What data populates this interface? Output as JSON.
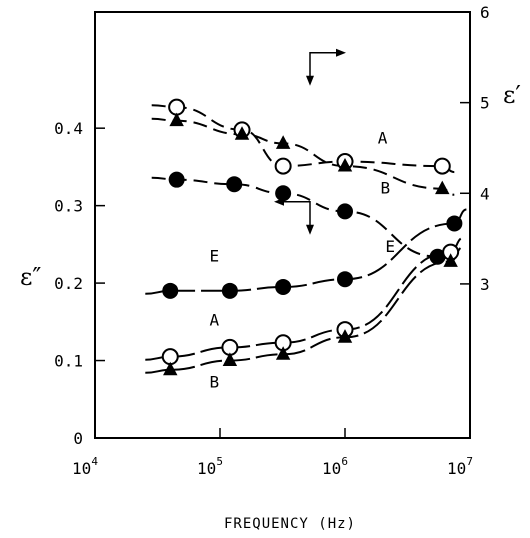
{
  "chart_data": {
    "type": "line",
    "xlabel": "FREQUENCY (Hz)",
    "xscale": "log",
    "xlim": [
      10000,
      10000000
    ],
    "x_ticks": [
      {
        "base": "10",
        "exp": "4"
      },
      {
        "base": "10",
        "exp": "5"
      },
      {
        "base": "10",
        "exp": "6"
      },
      {
        "base": "10",
        "exp": "7"
      }
    ],
    "y_left": {
      "label": "ε″",
      "ylim": [
        0,
        0.55
      ],
      "ticks": [
        "0",
        "0.1",
        "0.2",
        "0.3",
        "0.4"
      ]
    },
    "y_right": {
      "label": "ε′",
      "ylim": [
        1.3,
        6
      ],
      "ticks": [
        "3",
        "4",
        "5",
        "6"
      ]
    },
    "series": [
      {
        "name": "A",
        "quantity": "ε′",
        "axis": "right",
        "marker": "open-circle",
        "x": [
          45000,
          150000,
          320000,
          1000000,
          6000000
        ],
        "values": [
          4.95,
          4.7,
          4.3,
          4.35,
          4.3
        ]
      },
      {
        "name": "B",
        "quantity": "ε′",
        "axis": "right",
        "marker": "filled-triangle",
        "x": [
          45000,
          150000,
          320000,
          1000000,
          6000000
        ],
        "values": [
          4.8,
          4.65,
          4.55,
          4.3,
          4.05
        ]
      },
      {
        "name": "E",
        "quantity": "ε′",
        "axis": "right",
        "marker": "filled-circle",
        "x": [
          45000,
          130000,
          320000,
          1000000,
          5500000
        ],
        "values": [
          4.15,
          4.1,
          4.0,
          3.8,
          3.3
        ]
      },
      {
        "name": "E",
        "quantity": "ε″",
        "axis": "left",
        "marker": "filled-circle",
        "x": [
          40000,
          120000,
          320000,
          1000000,
          7500000
        ],
        "values": [
          0.19,
          0.19,
          0.195,
          0.205,
          0.277
        ]
      },
      {
        "name": "A",
        "quantity": "ε″",
        "axis": "left",
        "marker": "open-circle",
        "x": [
          40000,
          120000,
          320000,
          1000000,
          7000000
        ],
        "values": [
          0.105,
          0.117,
          0.123,
          0.14,
          0.24
        ]
      },
      {
        "name": "B",
        "quantity": "ε″",
        "axis": "left",
        "marker": "filled-triangle",
        "x": [
          40000,
          120000,
          320000,
          1000000,
          7000000
        ],
        "values": [
          0.088,
          0.1,
          0.108,
          0.13,
          0.228
        ]
      }
    ],
    "annotations": [
      {
        "text": "A",
        "x": 2000000,
        "y_left": 0.12,
        "note": "upper group label"
      },
      {
        "text": "B",
        "x": 2000000,
        "y_left": 0.1
      },
      {
        "text": "E",
        "x": 2500000,
        "y_left": 0.38
      }
    ],
    "axis_indicators": [
      {
        "points_to": "right axis",
        "group": "ε′"
      },
      {
        "points_to": "left axis",
        "group": "ε″"
      }
    ],
    "grid": false,
    "legend": "none"
  }
}
